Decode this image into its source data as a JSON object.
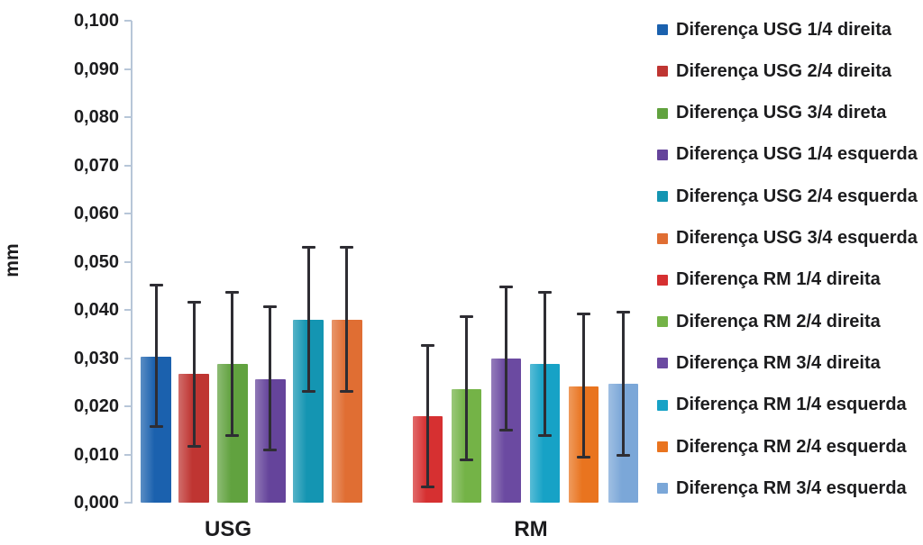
{
  "chart_data": {
    "type": "bar",
    "title": "",
    "xlabel": "",
    "ylabel": "mm",
    "ylim": [
      0,
      0.1
    ],
    "ytick_step": 0.01,
    "ytick_labels_bottom_to_top": [
      "0,000",
      "0,010",
      "0,020",
      "0,030",
      "0,040",
      "0,050",
      "0,060",
      "0,070",
      "0,080",
      "0,090",
      "0,100"
    ],
    "grid": false,
    "legend_position": "right",
    "error_bars": true,
    "groups": [
      {
        "label": "USG",
        "bars": [
          {
            "label": "Diferença USG 1/4 direita",
            "color": "#1b61ae",
            "value": 0.0303,
            "err_low": 0.0158,
            "err_high": 0.0453
          },
          {
            "label": "Diferença USG 2/4 direita",
            "color": "#bf3532",
            "value": 0.0267,
            "err_low": 0.0118,
            "err_high": 0.0417
          },
          {
            "label": "Diferença USG 3/4 direta",
            "color": "#61a23f",
            "value": 0.0287,
            "err_low": 0.014,
            "err_high": 0.0437
          },
          {
            "label": "Diferença USG 1/4 esquerda",
            "color": "#65449b",
            "value": 0.0257,
            "err_low": 0.011,
            "err_high": 0.0407
          },
          {
            "label": "Diferença USG 2/4 esquerda",
            "color": "#1495b2",
            "value": 0.038,
            "err_low": 0.0232,
            "err_high": 0.053
          },
          {
            "label": "Diferença USG 3/4 esquerda",
            "color": "#e06e33",
            "value": 0.038,
            "err_low": 0.0232,
            "err_high": 0.053
          }
        ]
      },
      {
        "label": "RM",
        "bars": [
          {
            "label": "Diferença RM 1/4 direita",
            "color": "#d63031",
            "value": 0.018,
            "err_low": 0.0033,
            "err_high": 0.0328
          },
          {
            "label": "Diferença RM 2/4 direita",
            "color": "#74b347",
            "value": 0.0235,
            "err_low": 0.009,
            "err_high": 0.0387
          },
          {
            "label": "Diferença RM 3/4 direita",
            "color": "#6b4aa1",
            "value": 0.03,
            "err_low": 0.0152,
            "err_high": 0.0448
          },
          {
            "label": "Diferença RM 1/4 esquerda",
            "color": "#17a2c6",
            "value": 0.0287,
            "err_low": 0.014,
            "err_high": 0.0437
          },
          {
            "label": "Diferença RM 2/4 esquerda",
            "color": "#e9741f",
            "value": 0.0242,
            "err_low": 0.0095,
            "err_high": 0.0393
          },
          {
            "label": "Diferença RM 3/4 esquerda",
            "color": "#7ba7d8",
            "value": 0.0247,
            "err_low": 0.0099,
            "err_high": 0.0397
          }
        ]
      }
    ],
    "colors": {
      "axis": "#b7c6d8",
      "error_bar": "#2e2d33",
      "text": "#1c1c1e",
      "background": "#ffffff"
    }
  }
}
